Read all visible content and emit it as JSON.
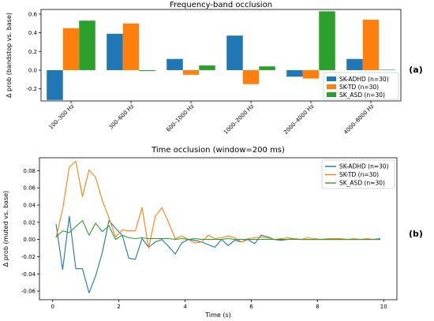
{
  "colors": {
    "adhd": "#1f77b4",
    "td": "#ff7f0e",
    "asd": "#2ca02c"
  },
  "panel_labels": {
    "a": "(a)",
    "b": "(b)"
  },
  "chart_data": [
    {
      "type": "bar",
      "title": "Frequency-band occlusion",
      "xlabel": "",
      "ylabel": "Δ prob (bandstop vs. base)",
      "ylim": [
        -0.33,
        0.65
      ],
      "yticks": [
        "-0.2",
        "0.0",
        "0.2",
        "0.4",
        "0.6"
      ],
      "ytick_values": [
        -0.2,
        0.0,
        0.2,
        0.4,
        0.6
      ],
      "categories": [
        "100–300 Hz",
        "300–600 Hz",
        "600–1000 Hz",
        "1000–2000 Hz",
        "2000–4000 Hz",
        "4000–8000 Hz"
      ],
      "series": [
        {
          "name": "SK-ADHD (n=30)",
          "values": [
            -0.32,
            0.39,
            0.12,
            0.37,
            -0.07,
            0.12
          ]
        },
        {
          "name": "SK-TD (n=30)",
          "values": [
            0.45,
            0.5,
            -0.05,
            -0.15,
            -0.09,
            0.54
          ]
        },
        {
          "name": "SK_ASD (n=30)",
          "values": [
            0.53,
            -0.01,
            0.05,
            0.04,
            0.63,
            0.005
          ]
        }
      ],
      "legend": "lower-right",
      "grid": false
    },
    {
      "type": "line",
      "title": "Time occlusion (window=200 ms)",
      "xlabel": "Time (s)",
      "ylabel": "Δ prob (muted vs. base)",
      "xlim": [
        -0.4,
        10.4
      ],
      "ylim": [
        -0.07,
        0.095
      ],
      "xticks": [
        "0",
        "2",
        "4",
        "6",
        "8",
        "10"
      ],
      "xtick_values": [
        0,
        2,
        4,
        6,
        8,
        10
      ],
      "yticks": [
        "-0.06",
        "-0.04",
        "-0.02",
        "0.00",
        "0.02",
        "0.04",
        "0.06",
        "0.08"
      ],
      "ytick_values": [
        -0.06,
        -0.04,
        -0.02,
        0.0,
        0.02,
        0.04,
        0.06,
        0.08
      ],
      "x": [
        0.1,
        0.3,
        0.5,
        0.7,
        0.9,
        1.1,
        1.3,
        1.5,
        1.7,
        1.9,
        2.1,
        2.3,
        2.5,
        2.7,
        2.9,
        3.1,
        3.3,
        3.5,
        3.7,
        3.9,
        4.1,
        4.3,
        4.5,
        4.7,
        4.9,
        5.1,
        5.3,
        5.5,
        5.7,
        5.9,
        6.1,
        6.3,
        6.5,
        6.7,
        6.9,
        7.1,
        7.3,
        7.5,
        7.7,
        7.9,
        8.1,
        8.3,
        8.5,
        8.7,
        8.9,
        9.1,
        9.3,
        9.5,
        9.7,
        9.9
      ],
      "series": [
        {
          "name": "SK-ADHD (n=30)",
          "values": [
            0.018,
            -0.035,
            0.027,
            -0.034,
            -0.034,
            -0.062,
            -0.042,
            -0.015,
            0.022,
            0.013,
            0.005,
            -0.022,
            -0.023,
            0.001,
            -0.009,
            -0.003,
            0.0,
            -0.008,
            -0.017,
            -0.004,
            0.0,
            -0.001,
            -0.003,
            -0.006,
            -0.009,
            0.0,
            -0.007,
            -0.001,
            -0.003,
            0.0,
            -0.005,
            0.005,
            0.003,
            0.0,
            -0.001,
            0.0,
            0.001,
            0.0,
            0.0,
            0.0,
            0.0,
            0.0,
            0.0,
            0.0,
            0.0,
            0.0,
            0.0,
            0.0,
            0.0,
            0.001
          ]
        },
        {
          "name": "SK-TD (n=30)",
          "values": [
            0.002,
            0.035,
            0.084,
            0.091,
            0.05,
            0.081,
            0.072,
            0.045,
            0.025,
            0.003,
            0.011,
            0.01,
            0.01,
            0.037,
            -0.01,
            0.027,
            0.037,
            0.02,
            0.001,
            0.004,
            0.0,
            -0.004,
            -0.003,
            0.005,
            0.001,
            0.002,
            0.004,
            0.002,
            -0.003,
            0.001,
            0.002,
            0.003,
            0.002,
            0.0,
            0.001,
            0.002,
            0.001,
            0.0,
            0.002,
            0.001,
            0.0,
            0.001,
            0.001,
            0.001,
            0.0,
            0.001,
            0.0,
            0.001,
            0.0,
            0.0
          ]
        },
        {
          "name": "SK_ASD (n=30)",
          "values": [
            0.003,
            0.01,
            0.008,
            0.015,
            0.022,
            0.005,
            0.019,
            0.009,
            0.016,
            0.0,
            0.005,
            0.002,
            0.001,
            0.002,
            0.001,
            0.001,
            0.001,
            0.001,
            0.0,
            0.001,
            0.0,
            0.001,
            0.0,
            0.0,
            0.0,
            0.0,
            0.001,
            0.0,
            0.0,
            0.0,
            0.0,
            0.0,
            0.0,
            0.0,
            0.0,
            0.0,
            0.0,
            0.0,
            0.0,
            0.0,
            0.0,
            0.0,
            0.0,
            0.0,
            0.0,
            0.0,
            0.0,
            0.0,
            0.0,
            0.0
          ]
        }
      ],
      "legend": "upper-right",
      "grid": false
    }
  ]
}
